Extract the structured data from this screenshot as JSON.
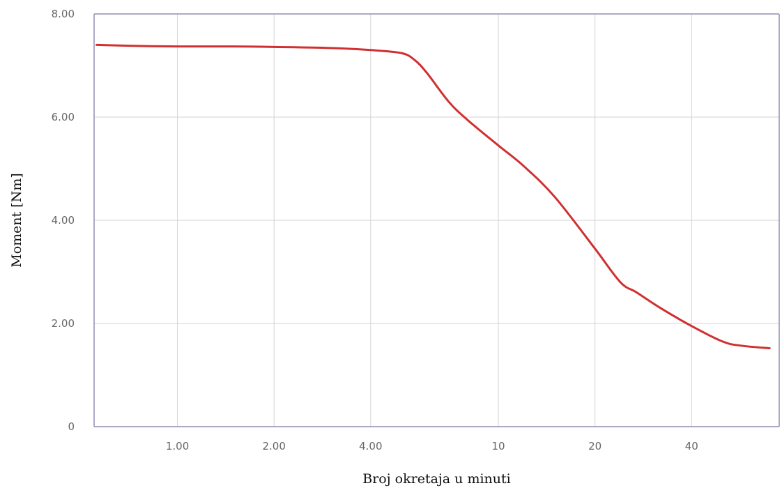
{
  "chart_data": {
    "type": "line",
    "title": "",
    "xlabel": "Broj okretaja u minuti",
    "ylabel": "Moment [Nm]",
    "x_scale": "log2",
    "xlim": [
      0.55,
      75
    ],
    "ylim": [
      0,
      8
    ],
    "grid": true,
    "legend": "none",
    "x_ticks": [
      {
        "value": 1,
        "label": "1.00"
      },
      {
        "value": 2,
        "label": "2.00"
      },
      {
        "value": 4,
        "label": "4.00"
      },
      {
        "value": 10,
        "label": "10"
      },
      {
        "value": 20,
        "label": "20"
      },
      {
        "value": 40,
        "label": "40"
      }
    ],
    "y_ticks": [
      {
        "value": 0,
        "label": "0"
      },
      {
        "value": 2,
        "label": "2.00"
      },
      {
        "value": 4,
        "label": "4.00"
      },
      {
        "value": 6,
        "label": "6.00"
      },
      {
        "value": 8,
        "label": "8.00"
      }
    ],
    "series": [
      {
        "color": "#d03030",
        "x": [
          0.56,
          0.75,
          1.0,
          1.5,
          2.0,
          3.0,
          4.0,
          5.0,
          5.5,
          6.0,
          7.0,
          8.0,
          10.0,
          12.0,
          15.0,
          20.0,
          24.0,
          27.0,
          32.0,
          40.0,
          50.0,
          57.0,
          70.0
        ],
        "y": [
          7.4,
          7.38,
          7.37,
          7.37,
          7.36,
          7.34,
          7.3,
          7.24,
          7.1,
          6.85,
          6.3,
          5.95,
          5.45,
          5.05,
          4.45,
          3.45,
          2.8,
          2.6,
          2.3,
          1.95,
          1.65,
          1.57,
          1.52
        ]
      }
    ]
  }
}
